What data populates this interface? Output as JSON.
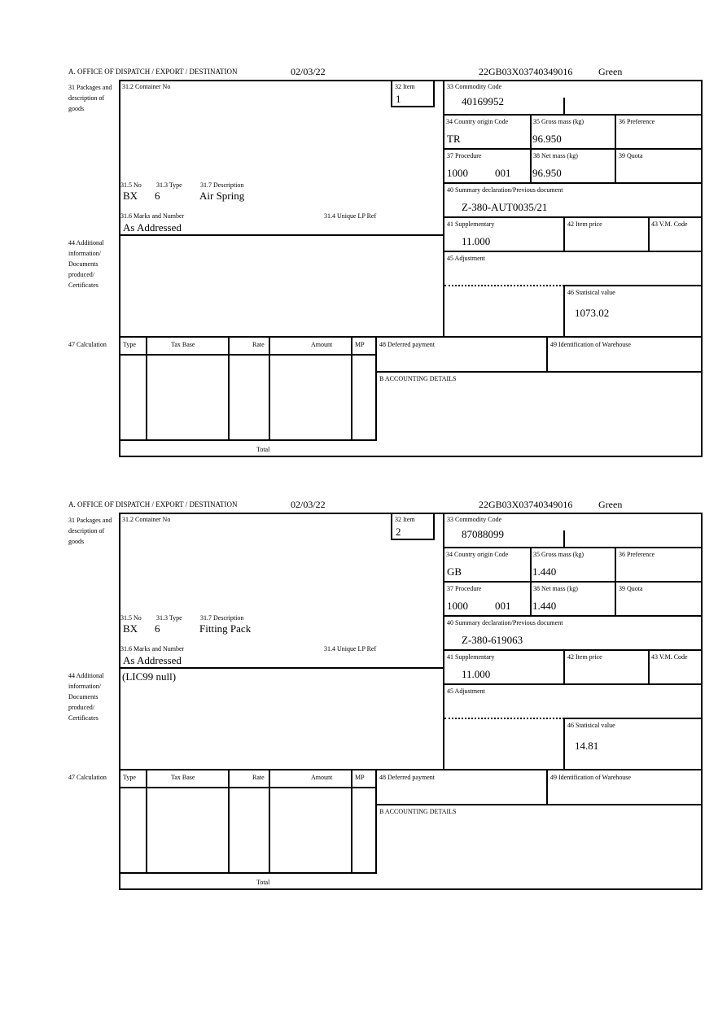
{
  "labels": {
    "office": "A. OFFICE OF DISPATCH / EXPORT / DESTINATION",
    "packages": "31 Packages and description of goods",
    "container_no": "31.2 Container No",
    "item": "32 Item",
    "no": "31.5 No",
    "type": "31.3 Type",
    "description": "31.7 Description",
    "marks": "31.6 Marks and Number",
    "unique_lp_ref": "31.4 Unique LP Ref",
    "commodity_code": "33 Commodity Code",
    "country_origin": "34 Country origin Code",
    "gross_mass": "35 Gross mass (kg)",
    "preference": "36 Preference",
    "procedure": "37 Procedure",
    "net_mass": "38 Net mass (kg)",
    "quota": "39 Quota",
    "summary_decl": "40 Summary declaration/Previous document",
    "supplementary": "41 Supplementary",
    "item_price": "42 Item price",
    "vm_code": "43 V.M. Code",
    "additional_info": "44 Additional information/ Documents produced/ Certificates",
    "adjustment": "45 Adjustment",
    "statistical_value": "46 Statisical value",
    "calculation": "47 Calculation",
    "calc_type": "Type",
    "calc_tax_base": "Tax Base",
    "calc_rate": "Rate",
    "calc_amount": "Amount",
    "calc_mp": "MP",
    "deferred_payment": "48 Deferred payment",
    "warehouse_id": "49 Identification of Warehouse",
    "accounting": "B ACCOUNTING DETAILS",
    "total": "Total"
  },
  "forms": [
    {
      "date": "02/03/22",
      "reference": "22GB03X03740349016",
      "route": "Green",
      "item": "1",
      "no": "BX",
      "type": "6",
      "description": "Air Spring",
      "marks": "As Addressed",
      "commodity_code": "40169952",
      "country_origin": "TR",
      "gross_mass": "96.950",
      "procedure": "1000",
      "procedure_additional": "001",
      "net_mass": "96.950",
      "summary_decl": "Z-380-AUT0035/21",
      "supplementary": "11.000",
      "additional_info": "",
      "statistical_value": "1073.02"
    },
    {
      "date": "02/03/22",
      "reference": "22GB03X03740349016",
      "route": "Green",
      "item": "2",
      "no": "BX",
      "type": "6",
      "description": "Fitting Pack",
      "marks": "As Addressed",
      "commodity_code": "87088099",
      "country_origin": "GB",
      "gross_mass": "1.440",
      "procedure": "1000",
      "procedure_additional": "001",
      "net_mass": "1.440",
      "summary_decl": "Z-380-619063",
      "supplementary": "11.000",
      "additional_info": "(LIC99 null)",
      "statistical_value": "14.81"
    }
  ]
}
